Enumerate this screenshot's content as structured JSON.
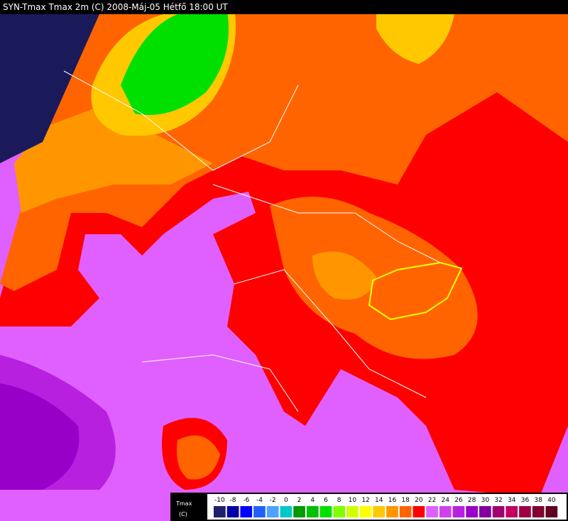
{
  "header": {
    "title": "SYN-Tmax  Tmax 2m (C)  2008-Máj-05 Hétfő 18:00 UT"
  },
  "legend": {
    "title": "Tmax",
    "unit": "(C)",
    "ticks": [
      -10,
      -8,
      -6,
      -4,
      -2,
      0,
      2,
      4,
      6,
      8,
      10,
      12,
      14,
      16,
      18,
      20,
      22,
      24,
      26,
      28,
      30,
      32,
      34,
      36,
      38,
      40
    ],
    "colors": [
      "#20206a",
      "#0000a8",
      "#0000ff",
      "#2060ff",
      "#50a0ff",
      "#00c8c8",
      "#009a00",
      "#00c000",
      "#00e000",
      "#80ff00",
      "#d0ff00",
      "#ffff00",
      "#ffc800",
      "#ff9600",
      "#ff6400",
      "#ff0000",
      "#e060ff",
      "#d040f0",
      "#b820e0",
      "#9800c8",
      "#8000a0",
      "#a00070",
      "#c00060",
      "#a00048",
      "#800030",
      "#600020"
    ]
  }
}
